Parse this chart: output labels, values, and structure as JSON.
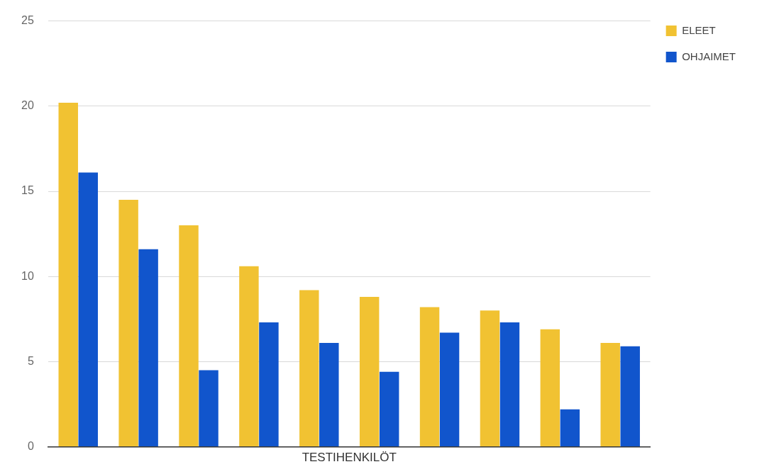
{
  "chart_data": {
    "type": "bar",
    "xlabel": "TESTIHENKILÖT",
    "categories": [
      null,
      null,
      null,
      null,
      null,
      null,
      null,
      null,
      null,
      null
    ],
    "series": [
      {
        "name": "ELEET",
        "color": "#f1c232",
        "values": [
          20.2,
          14.5,
          13.0,
          10.6,
          9.2,
          8.8,
          8.2,
          8.0,
          6.9,
          6.1
        ]
      },
      {
        "name": "OHJAIMET",
        "color": "#1155cc",
        "values": [
          16.1,
          11.6,
          4.5,
          7.3,
          6.1,
          4.4,
          6.7,
          7.3,
          2.2,
          5.9
        ]
      }
    ],
    "ylim": [
      0,
      25
    ],
    "yticks": [
      0,
      5,
      10,
      15,
      20,
      25
    ],
    "grid": "y",
    "legend": "top right",
    "tick_labels": "y"
  }
}
